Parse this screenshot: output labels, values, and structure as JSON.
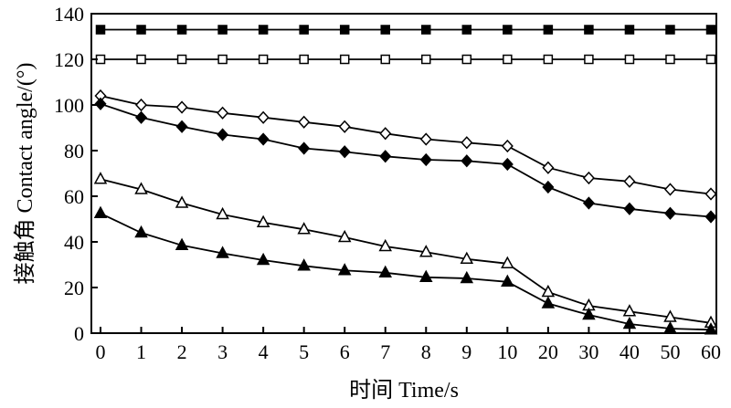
{
  "chart_data": {
    "type": "line",
    "xlabel": "时间 Time/s",
    "ylabel": "接触角 Contact angle/(°)",
    "categories": [
      "0",
      "1",
      "2",
      "3",
      "4",
      "5",
      "6",
      "7",
      "8",
      "9",
      "10",
      "20",
      "30",
      "40",
      "50",
      "60"
    ],
    "ylim": [
      0,
      140
    ],
    "yticks": [
      0,
      20,
      40,
      60,
      80,
      100,
      120,
      140
    ],
    "grid": false,
    "legend": "none",
    "series": [
      {
        "marker": "square-filled",
        "values": [
          133,
          133,
          133,
          133,
          133,
          133,
          133,
          133,
          133,
          133,
          133,
          133,
          133,
          133,
          133,
          133
        ]
      },
      {
        "marker": "square-open",
        "values": [
          120,
          120,
          120,
          120,
          120,
          120,
          120,
          120,
          120,
          120,
          120,
          120,
          120,
          120,
          120,
          120
        ]
      },
      {
        "marker": "diamond-open",
        "values": [
          104,
          100,
          99,
          96.5,
          94.5,
          92.5,
          90.5,
          87.5,
          85,
          83.5,
          82,
          72.5,
          68,
          66.5,
          63,
          61
        ]
      },
      {
        "marker": "diamond-filled",
        "values": [
          100.5,
          94.5,
          90.5,
          87,
          85,
          81,
          79.5,
          77.5,
          76,
          75.5,
          74,
          64,
          57,
          54.5,
          52.5,
          51
        ]
      },
      {
        "marker": "triangle-open",
        "values": [
          67.5,
          63,
          57,
          52,
          48.5,
          45.5,
          42,
          38,
          35.5,
          32.5,
          30.5,
          18,
          12,
          9.5,
          7,
          4.5
        ]
      },
      {
        "marker": "triangle-filled",
        "values": [
          52.5,
          44,
          38.5,
          35,
          32,
          29.5,
          27.5,
          26.5,
          24.5,
          24,
          22.5,
          13,
          8,
          4,
          2,
          1.5
        ]
      }
    ]
  }
}
